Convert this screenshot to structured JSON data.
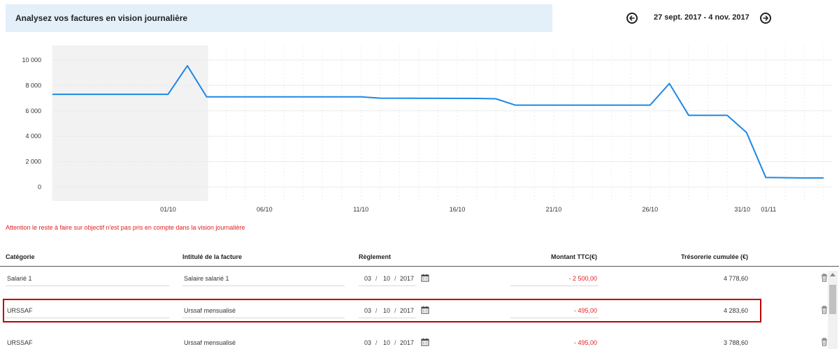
{
  "header": {
    "title": "Analysez vos factures en vision journalière",
    "date_range": "27 sept. 2017 - 4 nov. 2017",
    "prev_icon": "arrow-left-circle-icon",
    "next_icon": "arrow-right-circle-icon"
  },
  "chart_data": {
    "type": "line",
    "start_date": "2017-09-27",
    "end_date": "2017-11-04",
    "xtick_labels": [
      "01/10",
      "06/10",
      "11/10",
      "16/10",
      "21/10",
      "26/10",
      "31/10",
      "01/11"
    ],
    "ytick_labels": [
      "0",
      "2 000",
      "4 000",
      "6 000",
      "8 000",
      "10 000"
    ],
    "ylim": [
      -1000,
      11000
    ],
    "line_color": "#1e88e5",
    "shaded_region": {
      "from": "2017-09-27",
      "to": "2017-10-03",
      "color": "#f2f2f2"
    },
    "series": [
      {
        "values": [
          {
            "x": "2017-09-25",
            "y": 7300
          },
          {
            "x": "2017-10-01",
            "y": 7300
          },
          {
            "x": "2017-10-02",
            "y": 9550
          },
          {
            "x": "2017-10-03",
            "y": 7100
          },
          {
            "x": "2017-10-11",
            "y": 7100
          },
          {
            "x": "2017-10-12",
            "y": 7000
          },
          {
            "x": "2017-10-17",
            "y": 6980
          },
          {
            "x": "2017-10-18",
            "y": 6950
          },
          {
            "x": "2017-10-19",
            "y": 6450
          },
          {
            "x": "2017-10-26",
            "y": 6450
          },
          {
            "x": "2017-10-27",
            "y": 8150
          },
          {
            "x": "2017-10-28",
            "y": 5650
          },
          {
            "x": "2017-10-30",
            "y": 5650
          },
          {
            "x": "2017-10-31",
            "y": 4300
          },
          {
            "x": "2017-11-01",
            "y": 750
          },
          {
            "x": "2017-11-03",
            "y": 720
          },
          {
            "x": "2017-11-04",
            "y": 720
          }
        ]
      }
    ]
  },
  "warning": "Attention le reste à faire sur objectif n'est pas pris en compte dans la vision journalière",
  "table": {
    "headers": {
      "category": "Catégorie",
      "invoice": "Intitulé de la facture",
      "payment": "Règlement",
      "amount": "Montant TTC(€)",
      "cumulative": "Trésorerie cumulée (€)"
    },
    "rows": [
      {
        "category": "Salarié 1",
        "invoice": "Salaire salarié 1",
        "day": "03",
        "month": "10",
        "year": "2017",
        "amount": "- 2 500,00",
        "cumulative": "4 778,60"
      },
      {
        "category": "URSSAF",
        "invoice": "Urssaf mensualisé",
        "day": "03",
        "month": "10",
        "year": "2017",
        "amount": "- 495,00",
        "cumulative": "4 283,60"
      },
      {
        "category": "URSSAF",
        "invoice": "Urssaf mensualisé",
        "day": "03",
        "month": "10",
        "year": "2017",
        "amount": "- 495,00",
        "cumulative": "3 788,60"
      }
    ],
    "date_separator": "/",
    "calendar_icon": "calendar-icon",
    "delete_icon": "trash-icon"
  }
}
